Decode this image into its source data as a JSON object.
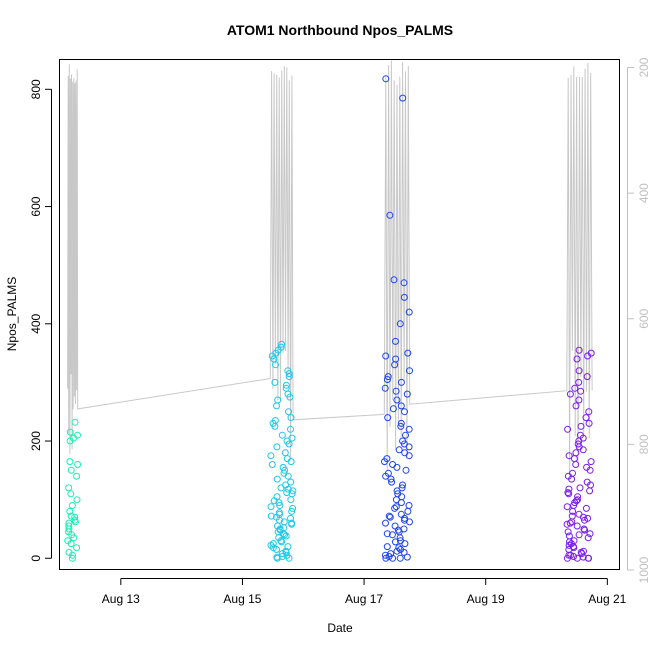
{
  "chart_data": {
    "type": "scatter",
    "title": "ATOM1 Northbound Npos_PALMS",
    "xlabel": "Date",
    "ylabel": "Npos_PALMS",
    "x_tick_labels": [
      "Aug 13",
      "Aug 15",
      "Aug 17",
      "Aug 19",
      "Aug 21"
    ],
    "x_ticks": [
      "2024-08-13",
      "2024-08-15",
      "2024-08-17",
      "2024-08-19",
      "2024-08-21"
    ],
    "xlim": [
      "2024-08-12T00:00",
      "2024-08-21T05:00"
    ],
    "y_ticks": [
      0,
      200,
      400,
      600,
      800
    ],
    "ylim": [
      -20,
      850
    ],
    "y2_ticks": [
      200,
      400,
      600,
      800,
      1000
    ],
    "y2_range": [
      188,
      1000
    ],
    "y2_reversed": true,
    "grid": false,
    "scatter_colors": {
      "start": "#00FFAA",
      "mid": "#1E64F0",
      "end": "#8800F0"
    },
    "line_color": "#c8c8c8",
    "series": [
      {
        "day": "2024-08-12",
        "color": "#19F0B5",
        "x_start": "2024-08-12T03:00",
        "x_end": "2024-08-12T07:00",
        "values": [
          0,
          5,
          10,
          18,
          25,
          30,
          35,
          40,
          45,
          50,
          55,
          60,
          62,
          65,
          70,
          72,
          80,
          90,
          100,
          110,
          120,
          140,
          150,
          160,
          165,
          200,
          205,
          210,
          215,
          232
        ]
      },
      {
        "day": "2024-08-15",
        "color": "#1EC8EB",
        "x_start": "2024-08-15T11:00",
        "x_end": "2024-08-15T20:00",
        "values": [
          0,
          0,
          2,
          3,
          5,
          8,
          10,
          12,
          15,
          18,
          20,
          22,
          25,
          28,
          30,
          35,
          38,
          40,
          42,
          45,
          48,
          50,
          52,
          55,
          58,
          60,
          62,
          65,
          68,
          70,
          72,
          75,
          78,
          80,
          85,
          88,
          90,
          95,
          98,
          100,
          105,
          110,
          112,
          115,
          118,
          120,
          125,
          130,
          135,
          140,
          145,
          150,
          155,
          160,
          165,
          170,
          175,
          180,
          190,
          195,
          200,
          205,
          210,
          220,
          225,
          230,
          235,
          240,
          250,
          260,
          270,
          275,
          280,
          290,
          295,
          300,
          310,
          315,
          320,
          330,
          340,
          345,
          350,
          355,
          360,
          365
        ]
      },
      {
        "day": "2024-08-17",
        "color": "#1E46EB",
        "x_start": "2024-08-17T08:00",
        "x_end": "2024-08-17T18:00",
        "values": [
          0,
          0,
          0,
          2,
          3,
          5,
          8,
          10,
          12,
          15,
          18,
          20,
          25,
          28,
          30,
          35,
          40,
          42,
          45,
          48,
          50,
          55,
          60,
          62,
          65,
          68,
          70,
          72,
          75,
          80,
          85,
          88,
          90,
          95,
          100,
          105,
          110,
          115,
          120,
          125,
          130,
          135,
          140,
          145,
          150,
          155,
          160,
          165,
          170,
          175,
          180,
          185,
          190,
          195,
          200,
          210,
          220,
          225,
          230,
          240,
          250,
          255,
          260,
          270,
          280,
          285,
          290,
          300,
          305,
          310,
          320,
          330,
          340,
          345,
          350,
          370,
          400,
          420,
          445,
          470,
          475,
          585,
          785,
          818
        ]
      },
      {
        "day": "2024-08-20",
        "color": "#7A1EEB",
        "x_start": "2024-08-20T08:00",
        "x_end": "2024-08-20T18:00",
        "values": [
          0,
          0,
          0,
          0,
          2,
          3,
          5,
          5,
          8,
          10,
          12,
          15,
          18,
          20,
          22,
          25,
          28,
          30,
          35,
          38,
          40,
          42,
          45,
          48,
          50,
          55,
          58,
          60,
          62,
          65,
          68,
          70,
          72,
          75,
          80,
          85,
          88,
          90,
          95,
          98,
          100,
          105,
          110,
          112,
          115,
          118,
          120,
          125,
          130,
          135,
          140,
          145,
          150,
          155,
          160,
          165,
          170,
          175,
          180,
          185,
          190,
          195,
          200,
          205,
          210,
          220,
          225,
          230,
          240,
          250,
          260,
          270,
          280,
          285,
          290,
          300,
          310,
          320,
          340,
          345,
          350,
          355
        ]
      }
    ]
  }
}
